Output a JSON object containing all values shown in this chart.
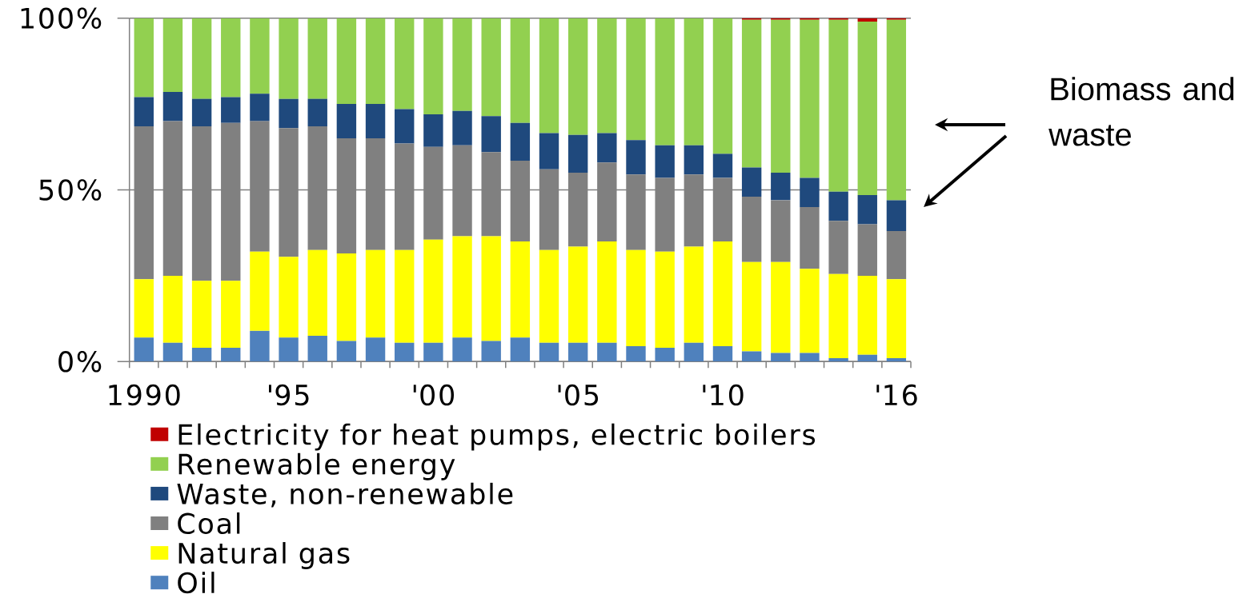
{
  "chart_data": {
    "type": "bar",
    "stacked": true,
    "categories": [
      "1990",
      null,
      null,
      null,
      null,
      "'95",
      null,
      null,
      null,
      null,
      "'00",
      null,
      null,
      null,
      null,
      "'05",
      null,
      null,
      null,
      null,
      "'10",
      null,
      null,
      null,
      null,
      null,
      "'16"
    ],
    "series": [
      {
        "name": "Oil",
        "color": "#4f81bd",
        "values": [
          7,
          5.5,
          4,
          4,
          9,
          7,
          7.5,
          6,
          7,
          5.5,
          5.5,
          7,
          6,
          7,
          5.5,
          5.5,
          5.5,
          4.5,
          4,
          5.5,
          4.5,
          3,
          2.5,
          2.5,
          1,
          2,
          1
        ]
      },
      {
        "name": "Natural gas",
        "color": "#ffff00",
        "values": [
          17,
          19.5,
          19.5,
          19.5,
          23,
          23.5,
          25,
          25.5,
          25.5,
          27,
          30,
          29.5,
          30.5,
          28,
          27,
          28,
          29.5,
          28,
          28,
          28,
          30.5,
          26,
          26.5,
          24.5,
          24.5,
          23,
          23
        ]
      },
      {
        "name": "Coal",
        "color": "#808080",
        "values": [
          44.5,
          45,
          45,
          46,
          38,
          37.5,
          36,
          33.5,
          32.5,
          31,
          27,
          26.5,
          24.5,
          23.5,
          23.5,
          21.5,
          23,
          22,
          21.5,
          21,
          18.5,
          19,
          18,
          18,
          15.5,
          15,
          14
        ]
      },
      {
        "name": "Waste, non-renewable",
        "color": "#1f497d",
        "values": [
          8.5,
          8.5,
          8,
          7.5,
          8,
          8.5,
          8,
          10,
          10,
          10,
          9.5,
          10,
          10.5,
          11,
          10.5,
          11,
          8.5,
          10,
          9.5,
          8.5,
          7,
          8.5,
          8,
          8.5,
          8.5,
          8.5,
          9
        ]
      },
      {
        "name": "Renewable energy",
        "color": "#92d050",
        "values": [
          23,
          21.5,
          23.5,
          23,
          22,
          23.5,
          23.5,
          25,
          25,
          26.5,
          28,
          27,
          28.5,
          30.5,
          33.5,
          34,
          33.5,
          35.5,
          37,
          37,
          39.5,
          43,
          44.5,
          46,
          50,
          50.5,
          52.5
        ]
      },
      {
        "name": "Electricity for heat pumps, electric boilers",
        "color": "#c00000",
        "values": [
          null,
          null,
          null,
          null,
          null,
          null,
          null,
          null,
          null,
          null,
          null,
          null,
          null,
          null,
          null,
          null,
          null,
          null,
          null,
          null,
          null,
          0.5,
          0.5,
          0.5,
          0.5,
          1,
          0.5
        ]
      }
    ],
    "ylim": [
      0,
      100
    ],
    "yticks": [
      {
        "value": 0,
        "label": "0%"
      },
      {
        "value": 50,
        "label": "50%"
      },
      {
        "value": 100,
        "label": "100%"
      }
    ],
    "grid": "y",
    "legend": "bottom",
    "annotations": [
      "Biomass and waste"
    ]
  }
}
